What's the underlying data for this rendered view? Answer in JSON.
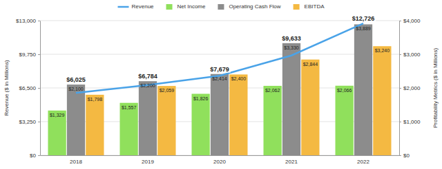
{
  "chart_data": {
    "type": "bar",
    "ylabel": "Revenue ($ in Millions)",
    "y2label": "Profitability Metrics ($ in Millions)",
    "categories": [
      "2018",
      "2019",
      "2020",
      "2021",
      "2022"
    ],
    "series": [
      {
        "name": "Revenue",
        "type": "line",
        "color": "#4aa3e8",
        "values": [
          6025,
          6784,
          7679,
          9633,
          12726
        ],
        "value_labels": [
          "$6,025",
          "$6,784",
          "$7,679",
          "$9,633",
          "$12,726"
        ]
      },
      {
        "name": "Net Income",
        "type": "bar",
        "axis": "y2",
        "color": "#90e05c",
        "values": [
          1329,
          1557,
          1826,
          2062,
          2066
        ],
        "value_labels": [
          "$1,329",
          "$1,557",
          "$1,826",
          "$2,062",
          "$2,066"
        ]
      },
      {
        "name": "Operating Cash Flow",
        "type": "bar",
        "axis": "y2",
        "color": "#8c8c8c",
        "values": [
          2100,
          2200,
          2414,
          3330,
          3889
        ],
        "value_labels": [
          "$2,100",
          "$2,200",
          "$2,414",
          "$3,330",
          "$3,889"
        ]
      },
      {
        "name": "EBITDA",
        "type": "bar",
        "axis": "y2",
        "color": "#f4b942",
        "values": [
          1798,
          2059,
          2400,
          2844,
          3240
        ],
        "value_labels": [
          "$1,798",
          "$2,059",
          "$2,400",
          "$2,844",
          "$3,240"
        ]
      }
    ],
    "ylim": [
      0,
      13000
    ],
    "yticks": [
      {
        "value": 0,
        "label": "$0"
      },
      {
        "value": 3250,
        "label": "$3,250"
      },
      {
        "value": 6500,
        "label": "$6,500"
      },
      {
        "value": 9750,
        "label": "$9,750"
      },
      {
        "value": 13000,
        "label": "$13,000"
      }
    ],
    "y2lim": [
      0,
      4000
    ],
    "y2ticks": [
      {
        "value": 0,
        "label": "$0"
      },
      {
        "value": 1000,
        "label": "$1,000"
      },
      {
        "value": 2000,
        "label": "$2,000"
      },
      {
        "value": 3000,
        "label": "$3,000"
      },
      {
        "value": 4000,
        "label": "$4,000"
      }
    ],
    "grid": true,
    "legend": "top",
    "data_labels": true
  }
}
